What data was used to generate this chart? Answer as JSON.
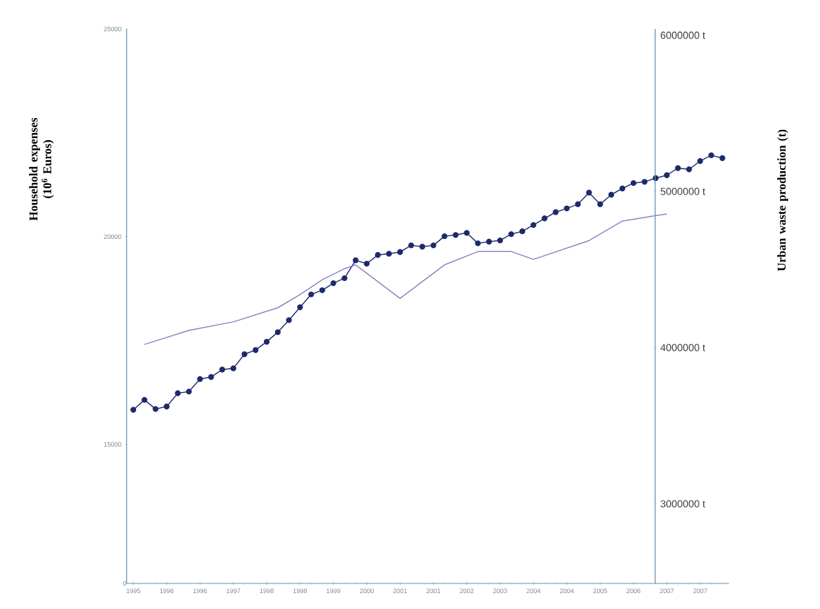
{
  "chart_data": {
    "type": "line",
    "ylabel": "Household expenses (10$^{6}$ Euros)",
    "y2label": "Urban waste production (t)",
    "annotations": [
      "0"
    ],
    "categories": [
      "1995",
      null,
      null,
      "1996",
      null,
      null,
      "1996",
      null,
      null,
      "1997",
      null,
      null,
      "1998",
      null,
      null,
      "1998",
      null,
      null,
      "1999",
      null,
      null,
      "2000",
      null,
      null,
      "2001",
      null,
      null,
      "2001",
      null,
      null,
      "2002",
      null,
      null,
      "2003",
      null,
      null,
      "2004",
      null,
      null,
      "2004",
      null,
      null,
      "2005",
      null,
      null,
      "2006",
      null,
      null,
      "2007",
      null,
      null,
      "2007",
      null,
      null
    ],
    "ylim": [
      11650,
      25000
    ],
    "yticks": [
      15000,
      20000,
      25000
    ],
    "y2lim": [
      2490000,
      6040000
    ],
    "y2ticks": [
      {
        "value": 3000000,
        "label": "3000000 t"
      },
      {
        "value": 4000000,
        "label": "4000000 t"
      },
      {
        "value": 5000000,
        "label": "5000000 t"
      },
      {
        "value": 6000000,
        "label": "6000000 t"
      }
    ],
    "series": [
      {
        "color": "#1f2a6b",
        "marker": "circle",
        "values": [
          15830,
          16070,
          15850,
          15910,
          16230,
          16270,
          16570,
          16620,
          16800,
          16830,
          17170,
          17270,
          17470,
          17700,
          17990,
          18300,
          18610,
          18710,
          18880,
          19000,
          19430,
          19350,
          19560,
          19590,
          19630,
          19790,
          19760,
          19790,
          20010,
          20040,
          20090,
          19840,
          19880,
          19910,
          20060,
          20130,
          20280,
          20440,
          20590,
          20680,
          20780,
          21060,
          20780,
          21010,
          21160,
          21290,
          21320,
          21410,
          21480,
          21650,
          21620,
          21820,
          21960,
          21890
        ]
      },
      {
        "color": "#8a80c4",
        "marker": "none",
        "axis": "y2",
        "values": [
          null,
          4020000,
          null,
          null,
          null,
          4110000,
          null,
          null,
          null,
          4165000,
          null,
          null,
          null,
          4255000,
          null,
          4340000,
          null,
          4435000,
          null,
          4505000,
          4530000,
          null,
          null,
          null,
          4315000,
          null,
          null,
          null,
          4530000,
          null,
          null,
          4615000,
          null,
          null,
          4615000,
          null,
          4565000,
          null,
          null,
          null,
          null,
          4685000,
          null,
          null,
          4810000,
          null,
          null,
          4845000,
          4855000,
          null,
          null,
          null,
          null,
          null
        ]
      }
    ]
  }
}
